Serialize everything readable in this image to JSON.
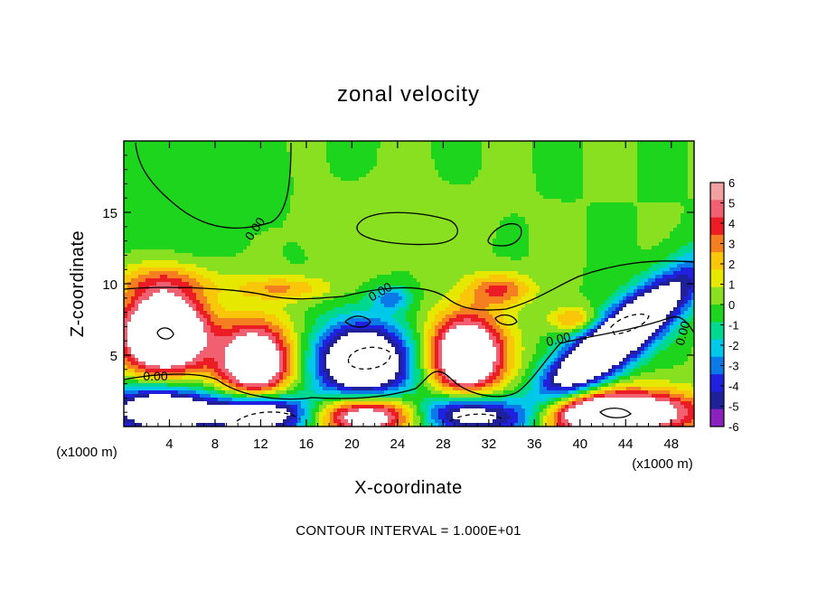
{
  "chart_data": {
    "type": "heatmap",
    "title": "zonal velocity",
    "xlabel": "X-coordinate",
    "ylabel": "Z-coordinate",
    "x_unit_left": "(x1000 m)",
    "x_unit_right": "(x1000 m)",
    "xlim": [
      0,
      50
    ],
    "ylim": [
      0,
      20
    ],
    "x_ticks": [
      4,
      8,
      12,
      16,
      20,
      24,
      28,
      32,
      36,
      40,
      44,
      48
    ],
    "y_ticks": [
      5,
      10,
      15
    ],
    "colorbar": {
      "levels": [
        6,
        5,
        4,
        3,
        2,
        1,
        0,
        -1,
        -2,
        -3,
        -4,
        -5,
        -6
      ],
      "colors": [
        "#f2a0a0",
        "#f06070",
        "#ec1c24",
        "#f57e20",
        "#f9c60a",
        "#e6e800",
        "#88e020",
        "#1cd51c",
        "#00d890",
        "#00c8e8",
        "#0a7ae8",
        "#2020e0",
        "#20209a",
        "#8a20c0"
      ],
      "clip_color": "#ffffff"
    },
    "contour_labels": [
      "0.00",
      "0.00",
      "0.00",
      "0.00",
      "0.00"
    ],
    "footer": "CONTOUR INTERVAL = 1.000E+01",
    "features": [
      {
        "x": 3.5,
        "z": 6.5,
        "amp": 13,
        "sx": 2.6,
        "sy": 2.0
      },
      {
        "x": 11.5,
        "z": 4.5,
        "amp": 10,
        "sx": 2.3,
        "sy": 2.0
      },
      {
        "x": 21.0,
        "z": 4.5,
        "amp": -11,
        "sx": 3.0,
        "sy": 1.9
      },
      {
        "x": 30.0,
        "z": 5.0,
        "amp": 11,
        "sx": 2.3,
        "sy": 2.0
      },
      {
        "x": 43.0,
        "z": 6.0,
        "amp": -12,
        "sx": 6.0,
        "sy": 1.3,
        "rot": 0.58
      },
      {
        "x": 3.0,
        "z": 1.2,
        "amp": -10,
        "sx": 3.0,
        "sy": 1.2
      },
      {
        "x": 12.0,
        "z": 0.9,
        "amp": -11,
        "sx": 3.6,
        "sy": 1.0
      },
      {
        "x": 21.5,
        "z": 0.8,
        "amp": 10,
        "sx": 4.0,
        "sy": 1.0
      },
      {
        "x": 30.0,
        "z": 0.9,
        "amp": -10,
        "sx": 3.8,
        "sy": 1.0
      },
      {
        "x": 42.5,
        "z": 1.0,
        "amp": 11,
        "sx": 5.5,
        "sy": 1.1
      },
      {
        "x": 3.5,
        "z": 10.2,
        "amp": 2.5,
        "sx": 3.5,
        "sy": 0.9
      },
      {
        "x": 14.0,
        "z": 9.7,
        "amp": 3.0,
        "sx": 3.0,
        "sy": 0.6
      },
      {
        "x": 23.5,
        "z": 9.0,
        "amp": -3.5,
        "sx": 1.2,
        "sy": 0.6
      },
      {
        "x": 33.0,
        "z": 9.6,
        "amp": 4.0,
        "sx": 2.0,
        "sy": 0.8
      },
      {
        "x": 39.5,
        "z": 7.5,
        "amp": 3.5,
        "sx": 1.5,
        "sy": 0.6
      },
      {
        "x": 4.0,
        "z": 16.0,
        "amp": -0.8,
        "sx": 6.0,
        "sy": 3.0
      },
      {
        "x": 22.0,
        "z": 14.0,
        "amp": 0.5,
        "sx": 6.0,
        "sy": 2.0
      }
    ]
  }
}
